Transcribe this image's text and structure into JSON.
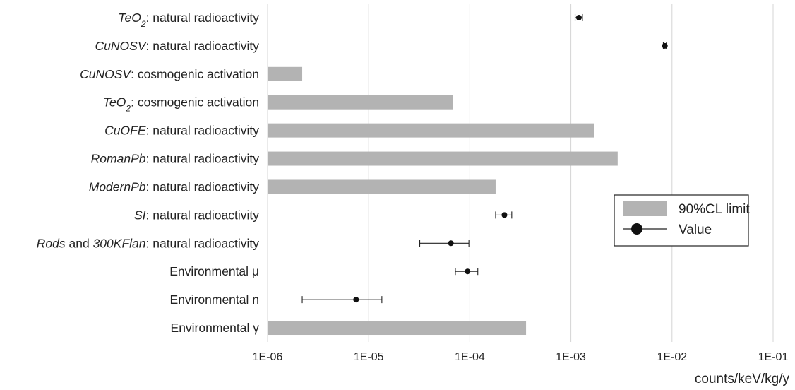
{
  "chart_data": {
    "type": "bar",
    "orientation": "horizontal",
    "x_scale": "log",
    "xlim": [
      1e-06,
      0.1
    ],
    "xlabel": "counts/keV/kg/y",
    "x_ticks": [
      "1E-06",
      "1E-05",
      "1E-04",
      "1E-03",
      "1E-02",
      "1E-01"
    ],
    "grid": "vertical",
    "legend": {
      "placement": "right",
      "entries": [
        "90%CL limit",
        "Value"
      ]
    },
    "categories": [
      {
        "parts": [
          {
            "t": "TeO",
            "i": true
          },
          {
            "t": "2",
            "i": true,
            "sub": true
          },
          {
            "t": ": natural radioactivity"
          }
        ]
      },
      {
        "parts": [
          {
            "t": "CuNOSV",
            "i": true
          },
          {
            "t": ": natural radioactivity"
          }
        ]
      },
      {
        "parts": [
          {
            "t": "CuNOSV",
            "i": true
          },
          {
            "t": ": cosmogenic activation"
          }
        ]
      },
      {
        "parts": [
          {
            "t": "TeO",
            "i": true
          },
          {
            "t": "2",
            "i": true,
            "sub": true
          },
          {
            "t": ": cosmogenic activation"
          }
        ]
      },
      {
        "parts": [
          {
            "t": "CuOFE",
            "i": true
          },
          {
            "t": ": natural radioactivity"
          }
        ]
      },
      {
        "parts": [
          {
            "t": "RomanPb",
            "i": true
          },
          {
            "t": ": natural radioactivity"
          }
        ]
      },
      {
        "parts": [
          {
            "t": "ModernPb",
            "i": true
          },
          {
            "t": ": natural radioactivity"
          }
        ]
      },
      {
        "parts": [
          {
            "t": "SI",
            "i": true
          },
          {
            "t": ": natural radioactivity"
          }
        ]
      },
      {
        "parts": [
          {
            "t": "Rods",
            "i": true
          },
          {
            "t": " and "
          },
          {
            "t": "300KFlan",
            "i": true
          },
          {
            "t": ": natural radioactivity"
          }
        ]
      },
      {
        "parts": [
          {
            "t": "Environmental μ"
          }
        ]
      },
      {
        "parts": [
          {
            "t": "Environmental n"
          }
        ]
      },
      {
        "parts": [
          {
            "t": "Environmental γ"
          }
        ]
      }
    ],
    "series": [
      {
        "name": "90%CL limit",
        "kind": "bar",
        "color": "#b3b3b3",
        "values": [
          null,
          null,
          2.2e-06,
          6.8e-05,
          0.0017,
          0.0029,
          0.00018,
          null,
          null,
          null,
          null,
          0.00036
        ]
      },
      {
        "name": "Value",
        "kind": "point",
        "color": "#111111",
        "values": [
          0.0012,
          0.0085,
          null,
          null,
          null,
          null,
          null,
          0.00022,
          6.5e-05,
          9.5e-05,
          7.5e-06,
          null
        ],
        "err_low": [
          0.0011,
          0.0082,
          null,
          null,
          null,
          null,
          null,
          0.00018,
          3.2e-05,
          7.2e-05,
          2.2e-06,
          null
        ],
        "err_high": [
          0.0013,
          0.0088,
          null,
          null,
          null,
          null,
          null,
          0.00026,
          9.8e-05,
          0.00012,
          1.35e-05,
          null
        ]
      }
    ]
  }
}
